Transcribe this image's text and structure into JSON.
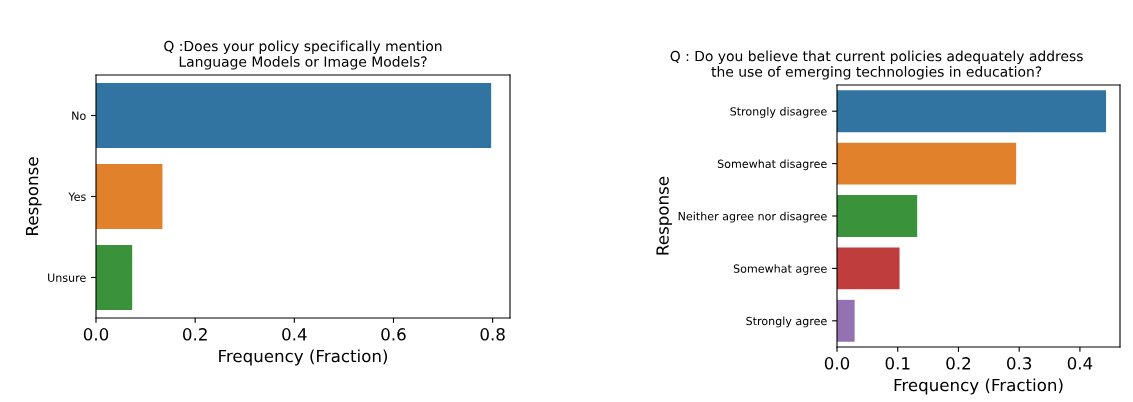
{
  "chart_data": [
    {
      "type": "bar",
      "orientation": "horizontal",
      "title": "Q :Does your policy specifically mention\nLanguage Models or Image Models?",
      "xlabel": "Frequency (Fraction)",
      "ylabel": "Response",
      "categories": [
        "No",
        "Yes",
        "Unsure"
      ],
      "values": [
        0.797,
        0.134,
        0.073
      ],
      "colors": [
        "#3274a1",
        "#e1812c",
        "#3a923a"
      ],
      "xlim": [
        0,
        0.835
      ],
      "xticks": [
        {
          "value": 0,
          "label": "0.0"
        },
        0.2,
        0.4,
        0.6,
        0.8
      ]
    },
    {
      "type": "bar",
      "orientation": "horizontal",
      "title": "Q : Do you believe that current policies adequately address\nthe use of emerging technologies in education?",
      "xlabel": "Frequency (Fraction)",
      "ylabel": "Response",
      "categories": [
        "Strongly disagree",
        "Somewhat disagree",
        "Neither agree nor disagree",
        "Somewhat agree",
        "Strongly agree"
      ],
      "values": [
        0.443,
        0.295,
        0.132,
        0.103,
        0.029
      ],
      "colors": [
        "#3274a1",
        "#e1812c",
        "#3a923a",
        "#c03d3e",
        "#9372b2"
      ],
      "xlim": [
        0,
        0.466
      ],
      "xticks": [
        {
          "value": 0,
          "label": "0.0"
        },
        0.1,
        0.2,
        0.3,
        0.4
      ]
    }
  ]
}
